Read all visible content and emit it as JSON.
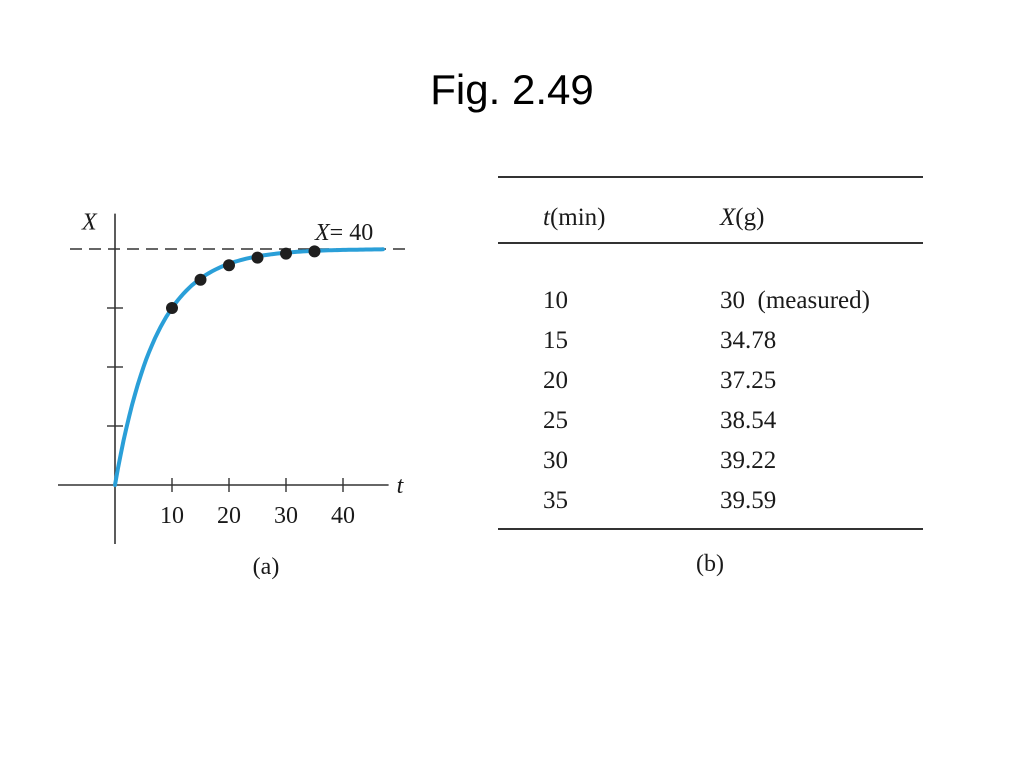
{
  "title": "Fig. 2.49",
  "chart_data": {
    "type": "line",
    "panel_label": "(a)",
    "xlabel": "t",
    "ylabel": "X",
    "xlim": [
      -10,
      48
    ],
    "ylim": [
      -10,
      46
    ],
    "x_ticks": [
      10,
      20,
      30,
      40
    ],
    "x_tick_labels": [
      "10",
      "20",
      "30",
      "40"
    ],
    "y_ticks": [
      10,
      20,
      30
    ],
    "curve": {
      "function": "X = 40(1 - e^(-0.1386 t))",
      "color": "#2a9fd8"
    },
    "asymptote": {
      "value": 40,
      "label": "X= 40",
      "style": "dashed"
    },
    "points": [
      {
        "x": 10,
        "y": 30
      },
      {
        "x": 15,
        "y": 34.78
      },
      {
        "x": 20,
        "y": 37.25
      },
      {
        "x": 25,
        "y": 38.54
      },
      {
        "x": 30,
        "y": 39.22
      },
      {
        "x": 35,
        "y": 39.59
      }
    ],
    "grid": false
  },
  "table": {
    "panel_label": "(b)",
    "headers": [
      {
        "var": "t",
        "unit": "(min)"
      },
      {
        "var": "X",
        "unit": "(g)"
      }
    ],
    "rows": [
      [
        "10",
        "30  (measured)"
      ],
      [
        "15",
        "34.78"
      ],
      [
        "20",
        "37.25"
      ],
      [
        "25",
        "38.54"
      ],
      [
        "30",
        "39.22"
      ],
      [
        "35",
        "39.59"
      ]
    ]
  }
}
